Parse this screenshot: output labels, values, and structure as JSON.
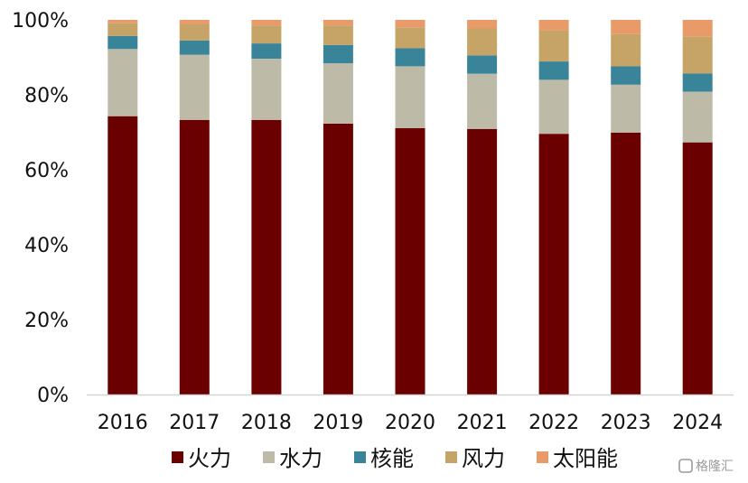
{
  "chart_data": {
    "type": "bar",
    "stacked": true,
    "categories": [
      "2016",
      "2017",
      "2018",
      "2019",
      "2020",
      "2021",
      "2022",
      "2023",
      "2024"
    ],
    "series": [
      {
        "name": "火力",
        "color": "#6b0000",
        "values": [
          74.3,
          73.3,
          73.3,
          72.3,
          71.1,
          70.9,
          69.6,
          69.9,
          67.3
        ]
      },
      {
        "name": "水力",
        "color": "#bdbaa8",
        "values": [
          17.9,
          17.4,
          16.3,
          16.1,
          16.5,
          14.7,
          14.4,
          12.8,
          13.5
        ]
      },
      {
        "name": "核能",
        "color": "#3a8499",
        "values": [
          3.5,
          3.8,
          4.1,
          4.9,
          4.8,
          4.9,
          4.9,
          4.9,
          4.9
        ]
      },
      {
        "name": "风力",
        "color": "#c6a468",
        "values": [
          3.5,
          4.3,
          4.8,
          5.2,
          5.6,
          7.2,
          8.3,
          8.6,
          9.9
        ]
      },
      {
        "name": "太阳能",
        "color": "#e89a68",
        "values": [
          0.8,
          1.2,
          1.5,
          1.5,
          2.0,
          2.3,
          2.8,
          3.8,
          4.4
        ]
      }
    ],
    "y_ticks": [
      "0%",
      "20%",
      "40%",
      "60%",
      "80%",
      "100%"
    ],
    "ylim": [
      0,
      100
    ],
    "y_unit": "%",
    "grid": false,
    "legend_position": "bottom"
  },
  "watermark": {
    "text": "格隆汇",
    "icon": "logo-icon"
  }
}
